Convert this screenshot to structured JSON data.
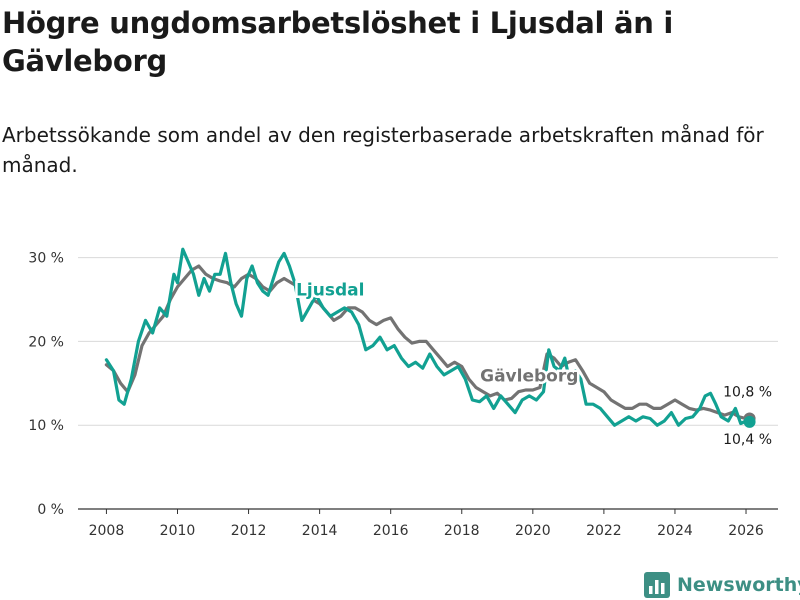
{
  "chart_data": {
    "type": "line",
    "title": "Högre ungdomsarbetslöshet i Ljusdal än i Gävleborg",
    "subtitle": "Arbetssökande som andel av den registerbaserade arbetskraften månad för månad.",
    "xlabel": "",
    "ylabel": "",
    "xlim": [
      2007.2,
      2026.9
    ],
    "ylim": [
      0,
      31.5
    ],
    "x_ticks": [
      "2008",
      "2010",
      "2012",
      "2014",
      "2016",
      "2018",
      "2020",
      "2022",
      "2024",
      "2026"
    ],
    "y_ticks": [
      "0 %",
      "10 %",
      "20 %",
      "30 %"
    ],
    "grid": "horizontal",
    "series": [
      {
        "name": "Gävleborg",
        "color": "#737373",
        "points": [
          [
            2008.0,
            17.2
          ],
          [
            2008.2,
            16.5
          ],
          [
            2008.4,
            15.0
          ],
          [
            2008.6,
            14.0
          ],
          [
            2008.8,
            16.0
          ],
          [
            2009.0,
            19.5
          ],
          [
            2009.2,
            21.0
          ],
          [
            2009.4,
            22.0
          ],
          [
            2009.6,
            23.0
          ],
          [
            2009.8,
            25.0
          ],
          [
            2010.0,
            26.5
          ],
          [
            2010.2,
            27.5
          ],
          [
            2010.4,
            28.5
          ],
          [
            2010.6,
            29.0
          ],
          [
            2010.8,
            28.0
          ],
          [
            2011.0,
            27.5
          ],
          [
            2011.2,
            27.2
          ],
          [
            2011.4,
            27.0
          ],
          [
            2011.6,
            26.5
          ],
          [
            2011.8,
            27.5
          ],
          [
            2012.0,
            28.0
          ],
          [
            2012.2,
            27.5
          ],
          [
            2012.4,
            26.5
          ],
          [
            2012.6,
            26.0
          ],
          [
            2012.8,
            27.0
          ],
          [
            2013.0,
            27.5
          ],
          [
            2013.2,
            27.0
          ],
          [
            2013.4,
            26.5
          ],
          [
            2013.6,
            25.5
          ],
          [
            2013.8,
            25.0
          ],
          [
            2014.0,
            24.5
          ],
          [
            2014.2,
            23.5
          ],
          [
            2014.4,
            22.5
          ],
          [
            2014.6,
            23.0
          ],
          [
            2014.8,
            24.0
          ],
          [
            2015.0,
            24.0
          ],
          [
            2015.2,
            23.5
          ],
          [
            2015.4,
            22.5
          ],
          [
            2015.6,
            22.0
          ],
          [
            2015.8,
            22.5
          ],
          [
            2016.0,
            22.8
          ],
          [
            2016.2,
            21.5
          ],
          [
            2016.4,
            20.5
          ],
          [
            2016.6,
            19.8
          ],
          [
            2016.8,
            20.0
          ],
          [
            2017.0,
            20.0
          ],
          [
            2017.2,
            19.0
          ],
          [
            2017.4,
            18.0
          ],
          [
            2017.6,
            17.0
          ],
          [
            2017.8,
            17.5
          ],
          [
            2018.0,
            17.0
          ],
          [
            2018.2,
            15.5
          ],
          [
            2018.4,
            14.5
          ],
          [
            2018.6,
            14.0
          ],
          [
            2018.8,
            13.5
          ],
          [
            2019.0,
            13.8
          ],
          [
            2019.2,
            13.0
          ],
          [
            2019.4,
            13.2
          ],
          [
            2019.6,
            14.0
          ],
          [
            2019.8,
            14.2
          ],
          [
            2020.0,
            14.2
          ],
          [
            2020.2,
            14.5
          ],
          [
            2020.4,
            18.5
          ],
          [
            2020.6,
            18.0
          ],
          [
            2020.8,
            17.0
          ],
          [
            2021.0,
            17.5
          ],
          [
            2021.2,
            17.8
          ],
          [
            2021.4,
            16.5
          ],
          [
            2021.6,
            15.0
          ],
          [
            2021.8,
            14.5
          ],
          [
            2022.0,
            14.0
          ],
          [
            2022.2,
            13.0
          ],
          [
            2022.4,
            12.5
          ],
          [
            2022.6,
            12.0
          ],
          [
            2022.8,
            12.0
          ],
          [
            2023.0,
            12.5
          ],
          [
            2023.2,
            12.5
          ],
          [
            2023.4,
            12.0
          ],
          [
            2023.6,
            12.0
          ],
          [
            2023.8,
            12.5
          ],
          [
            2024.0,
            13.0
          ],
          [
            2024.2,
            12.5
          ],
          [
            2024.4,
            12.0
          ],
          [
            2024.6,
            11.8
          ],
          [
            2024.8,
            12.0
          ],
          [
            2025.0,
            11.8
          ],
          [
            2025.2,
            11.5
          ],
          [
            2025.4,
            11.2
          ],
          [
            2025.6,
            11.5
          ],
          [
            2025.8,
            11.0
          ],
          [
            2026.0,
            10.8
          ],
          [
            2026.1,
            10.8
          ]
        ]
      },
      {
        "name": "Ljusdal",
        "color": "#12a192",
        "points": [
          [
            2008.0,
            17.8
          ],
          [
            2008.2,
            16.5
          ],
          [
            2008.35,
            13.0
          ],
          [
            2008.5,
            12.5
          ],
          [
            2008.7,
            15.5
          ],
          [
            2008.9,
            20.0
          ],
          [
            2009.1,
            22.5
          ],
          [
            2009.3,
            21.0
          ],
          [
            2009.5,
            24.0
          ],
          [
            2009.7,
            23.0
          ],
          [
            2009.9,
            28.0
          ],
          [
            2010.0,
            27.0
          ],
          [
            2010.15,
            31.0
          ],
          [
            2010.3,
            29.5
          ],
          [
            2010.45,
            28.0
          ],
          [
            2010.6,
            25.5
          ],
          [
            2010.75,
            27.5
          ],
          [
            2010.9,
            26.0
          ],
          [
            2011.05,
            28.0
          ],
          [
            2011.2,
            28.0
          ],
          [
            2011.35,
            30.5
          ],
          [
            2011.5,
            27.0
          ],
          [
            2011.65,
            24.5
          ],
          [
            2011.8,
            23.0
          ],
          [
            2011.95,
            27.5
          ],
          [
            2012.1,
            29.0
          ],
          [
            2012.25,
            27.0
          ],
          [
            2012.4,
            26.0
          ],
          [
            2012.55,
            25.5
          ],
          [
            2012.7,
            27.5
          ],
          [
            2012.85,
            29.5
          ],
          [
            2013.0,
            30.5
          ],
          [
            2013.15,
            29.0
          ],
          [
            2013.3,
            27.0
          ],
          [
            2013.5,
            22.5
          ],
          [
            2013.7,
            24.0
          ],
          [
            2013.9,
            25.5
          ],
          [
            2014.1,
            24.0
          ],
          [
            2014.3,
            23.0
          ],
          [
            2014.5,
            23.5
          ],
          [
            2014.7,
            24.0
          ],
          [
            2014.9,
            23.5
          ],
          [
            2015.1,
            22.0
          ],
          [
            2015.3,
            19.0
          ],
          [
            2015.5,
            19.5
          ],
          [
            2015.7,
            20.5
          ],
          [
            2015.9,
            19.0
          ],
          [
            2016.1,
            19.5
          ],
          [
            2016.3,
            18.0
          ],
          [
            2016.5,
            17.0
          ],
          [
            2016.7,
            17.5
          ],
          [
            2016.9,
            16.8
          ],
          [
            2017.1,
            18.5
          ],
          [
            2017.3,
            17.0
          ],
          [
            2017.5,
            16.0
          ],
          [
            2017.7,
            16.5
          ],
          [
            2017.9,
            17.0
          ],
          [
            2018.1,
            15.5
          ],
          [
            2018.3,
            13.0
          ],
          [
            2018.5,
            12.8
          ],
          [
            2018.7,
            13.5
          ],
          [
            2018.9,
            12.0
          ],
          [
            2019.1,
            13.5
          ],
          [
            2019.3,
            12.5
          ],
          [
            2019.5,
            11.5
          ],
          [
            2019.7,
            13.0
          ],
          [
            2019.9,
            13.5
          ],
          [
            2020.1,
            13.0
          ],
          [
            2020.3,
            14.0
          ],
          [
            2020.45,
            19.0
          ],
          [
            2020.6,
            17.0
          ],
          [
            2020.75,
            16.5
          ],
          [
            2020.9,
            18.0
          ],
          [
            2021.05,
            15.0
          ],
          [
            2021.2,
            16.5
          ],
          [
            2021.35,
            15.5
          ],
          [
            2021.5,
            12.5
          ],
          [
            2021.7,
            12.5
          ],
          [
            2021.9,
            12.0
          ],
          [
            2022.1,
            11.0
          ],
          [
            2022.3,
            10.0
          ],
          [
            2022.5,
            10.5
          ],
          [
            2022.7,
            11.0
          ],
          [
            2022.9,
            10.5
          ],
          [
            2023.1,
            11.0
          ],
          [
            2023.3,
            10.8
          ],
          [
            2023.5,
            10.0
          ],
          [
            2023.7,
            10.5
          ],
          [
            2023.9,
            11.5
          ],
          [
            2024.1,
            10.0
          ],
          [
            2024.3,
            10.8
          ],
          [
            2024.5,
            11.0
          ],
          [
            2024.7,
            12.0
          ],
          [
            2024.85,
            13.5
          ],
          [
            2025.0,
            13.8
          ],
          [
            2025.15,
            12.5
          ],
          [
            2025.3,
            11.0
          ],
          [
            2025.5,
            10.5
          ],
          [
            2025.7,
            12.0
          ],
          [
            2025.85,
            10.2
          ],
          [
            2026.0,
            10.5
          ],
          [
            2026.1,
            10.4
          ]
        ]
      }
    ],
    "series_labels": [
      {
        "name": "Ljusdal",
        "at": [
          2014.3,
          25.5
        ]
      },
      {
        "name": "Gävleborg",
        "at": [
          2019.9,
          15.2
        ]
      }
    ],
    "end_labels": [
      {
        "text": "10,8 %",
        "series": "Gävleborg",
        "value": 10.8
      },
      {
        "text": "10,4 %",
        "series": "Ljusdal",
        "value": 10.4
      }
    ]
  },
  "brand": {
    "name": "Newsworthy",
    "icon": "bar-chart-logo-icon",
    "color": "#3d8f84"
  }
}
